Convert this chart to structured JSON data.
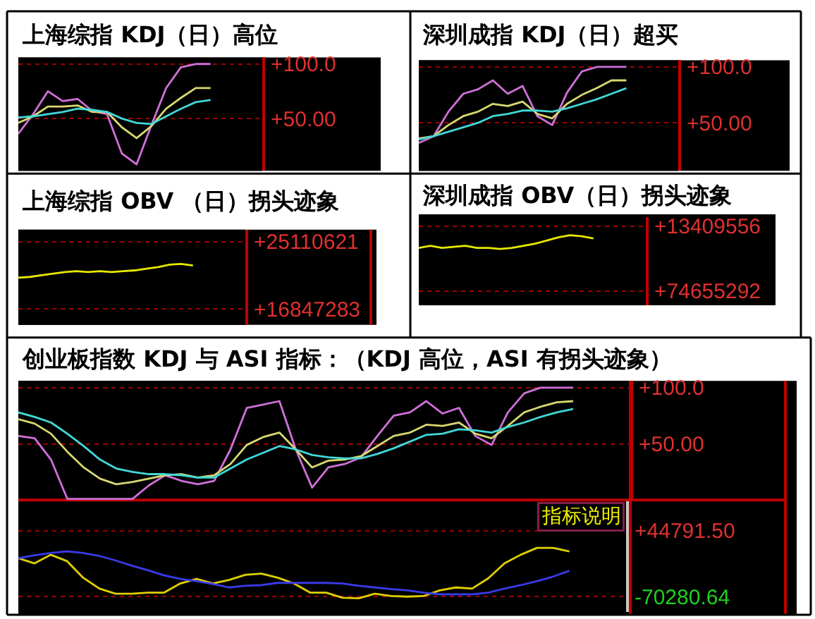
{
  "chart_data": [
    {
      "type": "line",
      "title": "上海综指 KDJ（日）高位",
      "categories": [
        null,
        null,
        null,
        null,
        null,
        null,
        null,
        null,
        null,
        null,
        null,
        null,
        null,
        null,
        null,
        null,
        null
      ],
      "series": [
        {
          "color": "#d070d8",
          "values": [
            36,
            54,
            75,
            66,
            68,
            57,
            54,
            18,
            8,
            44,
            78,
            97,
            100,
            100,
            null,
            null,
            null
          ]
        },
        {
          "color": "#d8d870",
          "values": [
            46,
            52,
            61,
            61,
            62,
            56,
            56,
            42,
            32,
            43,
            59,
            69,
            78,
            78,
            null,
            null,
            null
          ]
        },
        {
          "color": "#40d8d8",
          "values": [
            51,
            52,
            54,
            56,
            59,
            58,
            56,
            50,
            46,
            45,
            52,
            59,
            65,
            67,
            null,
            null,
            null
          ]
        }
      ],
      "ylim": [
        2,
        106
      ],
      "yticks": [
        {
          "value": 100,
          "label": "+100.0"
        },
        {
          "value": 50,
          "label": "+50.00"
        }
      ],
      "grid": "y",
      "tick_labels": "y"
    },
    {
      "type": "line",
      "title": "深圳成指 KDJ（日）超买",
      "categories": [
        null,
        null,
        null,
        null,
        null,
        null,
        null,
        null,
        null,
        null,
        null,
        null,
        null,
        null,
        null,
        null,
        null,
        null
      ],
      "series": [
        {
          "color": "#d070d8",
          "values": [
            32,
            38,
            60,
            76,
            80,
            88,
            76,
            83,
            56,
            48,
            77,
            96,
            100,
            100,
            100,
            null,
            null,
            null
          ]
        },
        {
          "color": "#d8d870",
          "values": [
            36,
            38,
            48,
            56,
            60,
            67,
            65,
            69,
            58,
            54,
            67,
            75,
            81,
            88,
            88,
            null,
            null,
            null
          ]
        },
        {
          "color": "#40d8d8",
          "values": [
            35,
            38,
            42,
            46,
            50,
            56,
            58,
            61,
            61,
            60,
            63,
            67,
            71,
            76,
            81,
            null,
            null,
            null
          ]
        }
      ],
      "ylim": [
        7,
        106
      ],
      "yticks": [
        {
          "value": 100,
          "label": "+100.0"
        },
        {
          "value": 50,
          "label": "+50.00"
        }
      ],
      "grid": "y",
      "tick_labels": "y"
    },
    {
      "type": "line",
      "title": "上海综指 OBV （日）拐头迹象",
      "categories": [
        null,
        null,
        null,
        null,
        null,
        null,
        null,
        null,
        null,
        null,
        null,
        null,
        null,
        null,
        null,
        null,
        null,
        null,
        null,
        null
      ],
      "series": [
        {
          "color": "#e8e800",
          "values": [
            20700000,
            20800000,
            21000000,
            21200000,
            21400000,
            21500000,
            21400000,
            21500000,
            21400000,
            21500000,
            21600000,
            21800000,
            22000000,
            22300000,
            22400000,
            22200000,
            null,
            null,
            null,
            null
          ]
        }
      ],
      "ylim": [
        14900000,
        26600000
      ],
      "yticks": [
        {
          "value": 25110621,
          "label": "+25110621"
        },
        {
          "value": 16847283,
          "label": "+16847283"
        }
      ],
      "grid": "y",
      "tick_labels": "y"
    },
    {
      "type": "line",
      "title": "深圳成指 OBV（日）拐头迹象",
      "categories": [
        null,
        null,
        null,
        null,
        null,
        null,
        null,
        null,
        null,
        null,
        null,
        null,
        null,
        null,
        null,
        null,
        null,
        null,
        null,
        null
      ],
      "series": [
        {
          "color": "#e8e800",
          "values": [
            34000000,
            32000000,
            34000000,
            33000000,
            32000000,
            34000000,
            34000000,
            35000000,
            34000000,
            32000000,
            30000000,
            27000000,
            24000000,
            22000000,
            23000000,
            25000000,
            null,
            null,
            null,
            null
          ]
        }
      ],
      "ylim": [
        88000000,
        5000000
      ],
      "yticks": [
        {
          "value": 13409556,
          "label": "+13409556"
        },
        {
          "value": 74655292,
          "label": "+74655292"
        }
      ],
      "grid": "y",
      "tick_labels": "y"
    },
    {
      "type": "line",
      "title": "创业板指数 KDJ 与 ASI 指标：（KDJ 高位，ASI 有拐头迹象）",
      "categories": [
        null,
        null,
        null,
        null,
        null,
        null,
        null,
        null,
        null,
        null,
        null,
        null,
        null,
        null,
        null,
        null,
        null,
        null,
        null,
        null,
        null,
        null,
        null,
        null,
        null,
        null,
        null,
        null,
        null,
        null,
        null,
        null,
        null,
        null,
        null,
        null,
        null,
        null
      ],
      "series": [
        {
          "color": "#d070d8",
          "values": [
            57,
            55,
            36,
            1,
            1,
            1,
            1,
            1,
            13,
            22,
            17,
            14,
            17,
            45,
            82,
            85,
            88,
            45,
            11,
            29,
            32,
            38,
            57,
            75,
            78,
            88,
            77,
            82,
            57,
            49,
            78,
            95,
            100,
            100,
            100,
            null,
            null,
            null
          ]
        },
        {
          "color": "#d8d870",
          "values": [
            72,
            68,
            59,
            43,
            29,
            19,
            14,
            16,
            19,
            22,
            23,
            20,
            22,
            32,
            49,
            56,
            60,
            45,
            29,
            35,
            36,
            39,
            48,
            57,
            60,
            67,
            66,
            69,
            59,
            55,
            66,
            78,
            83,
            87,
            88,
            null,
            null,
            null
          ]
        },
        {
          "color": "#40d8d8",
          "values": [
            78,
            74,
            69,
            59,
            48,
            36,
            28,
            25,
            23,
            23,
            22,
            20,
            20,
            28,
            36,
            42,
            48,
            45,
            40,
            38,
            37,
            37,
            41,
            46,
            52,
            58,
            59,
            63,
            62,
            60,
            65,
            69,
            74,
            78,
            81,
            null,
            null,
            null
          ]
        }
      ],
      "ylim": [
        0,
        106
      ],
      "yticks": [
        {
          "value": 100,
          "label": "+100.0"
        },
        {
          "value": 50,
          "label": "+50.00"
        }
      ],
      "grid": "y",
      "tick_labels": "y"
    },
    {
      "type": "line",
      "annotations": [
        "指标说明"
      ],
      "categories": [
        null,
        null,
        null,
        null,
        null,
        null,
        null,
        null,
        null,
        null,
        null,
        null,
        null,
        null,
        null,
        null,
        null,
        null,
        null,
        null,
        null,
        null,
        null,
        null,
        null,
        null,
        null,
        null,
        null,
        null,
        null,
        null,
        null,
        null,
        null,
        null,
        null,
        null
      ],
      "series": [
        {
          "color": "#e0d000",
          "values": [
            -3000,
            -12000,
            3000,
            -8000,
            -37000,
            -56000,
            -65000,
            -65000,
            -63000,
            -63000,
            -47000,
            -39000,
            -47000,
            -41000,
            -32000,
            -30000,
            -37000,
            -47000,
            -63000,
            -63000,
            -72000,
            -73000,
            -65000,
            -69000,
            -70000,
            -69000,
            -59000,
            -54000,
            -56000,
            -38000,
            -12000,
            3000,
            15000,
            15000,
            9000,
            null,
            null,
            null
          ]
        },
        {
          "color": "#3a3ae8",
          "values": [
            -3000,
            2000,
            6000,
            9000,
            6000,
            1000,
            -7000,
            -16000,
            -24000,
            -33000,
            -39000,
            -43000,
            -48000,
            -54000,
            -51000,
            -50000,
            -46000,
            -46000,
            -46000,
            -46000,
            -47000,
            -51000,
            -54000,
            -57000,
            -59000,
            -63000,
            -66000,
            -66000,
            -66000,
            -63000,
            -56000,
            -50000,
            -43000,
            -35000,
            -25000,
            null,
            null,
            null
          ]
        }
      ],
      "ylim": [
        -96800,
        96100
      ],
      "yticks": [
        {
          "value": 44791.5,
          "label": "+44791.50"
        },
        {
          "value": -70280.64,
          "label": "-70280.64"
        }
      ],
      "grid": "y",
      "tick_labels": "y"
    }
  ]
}
